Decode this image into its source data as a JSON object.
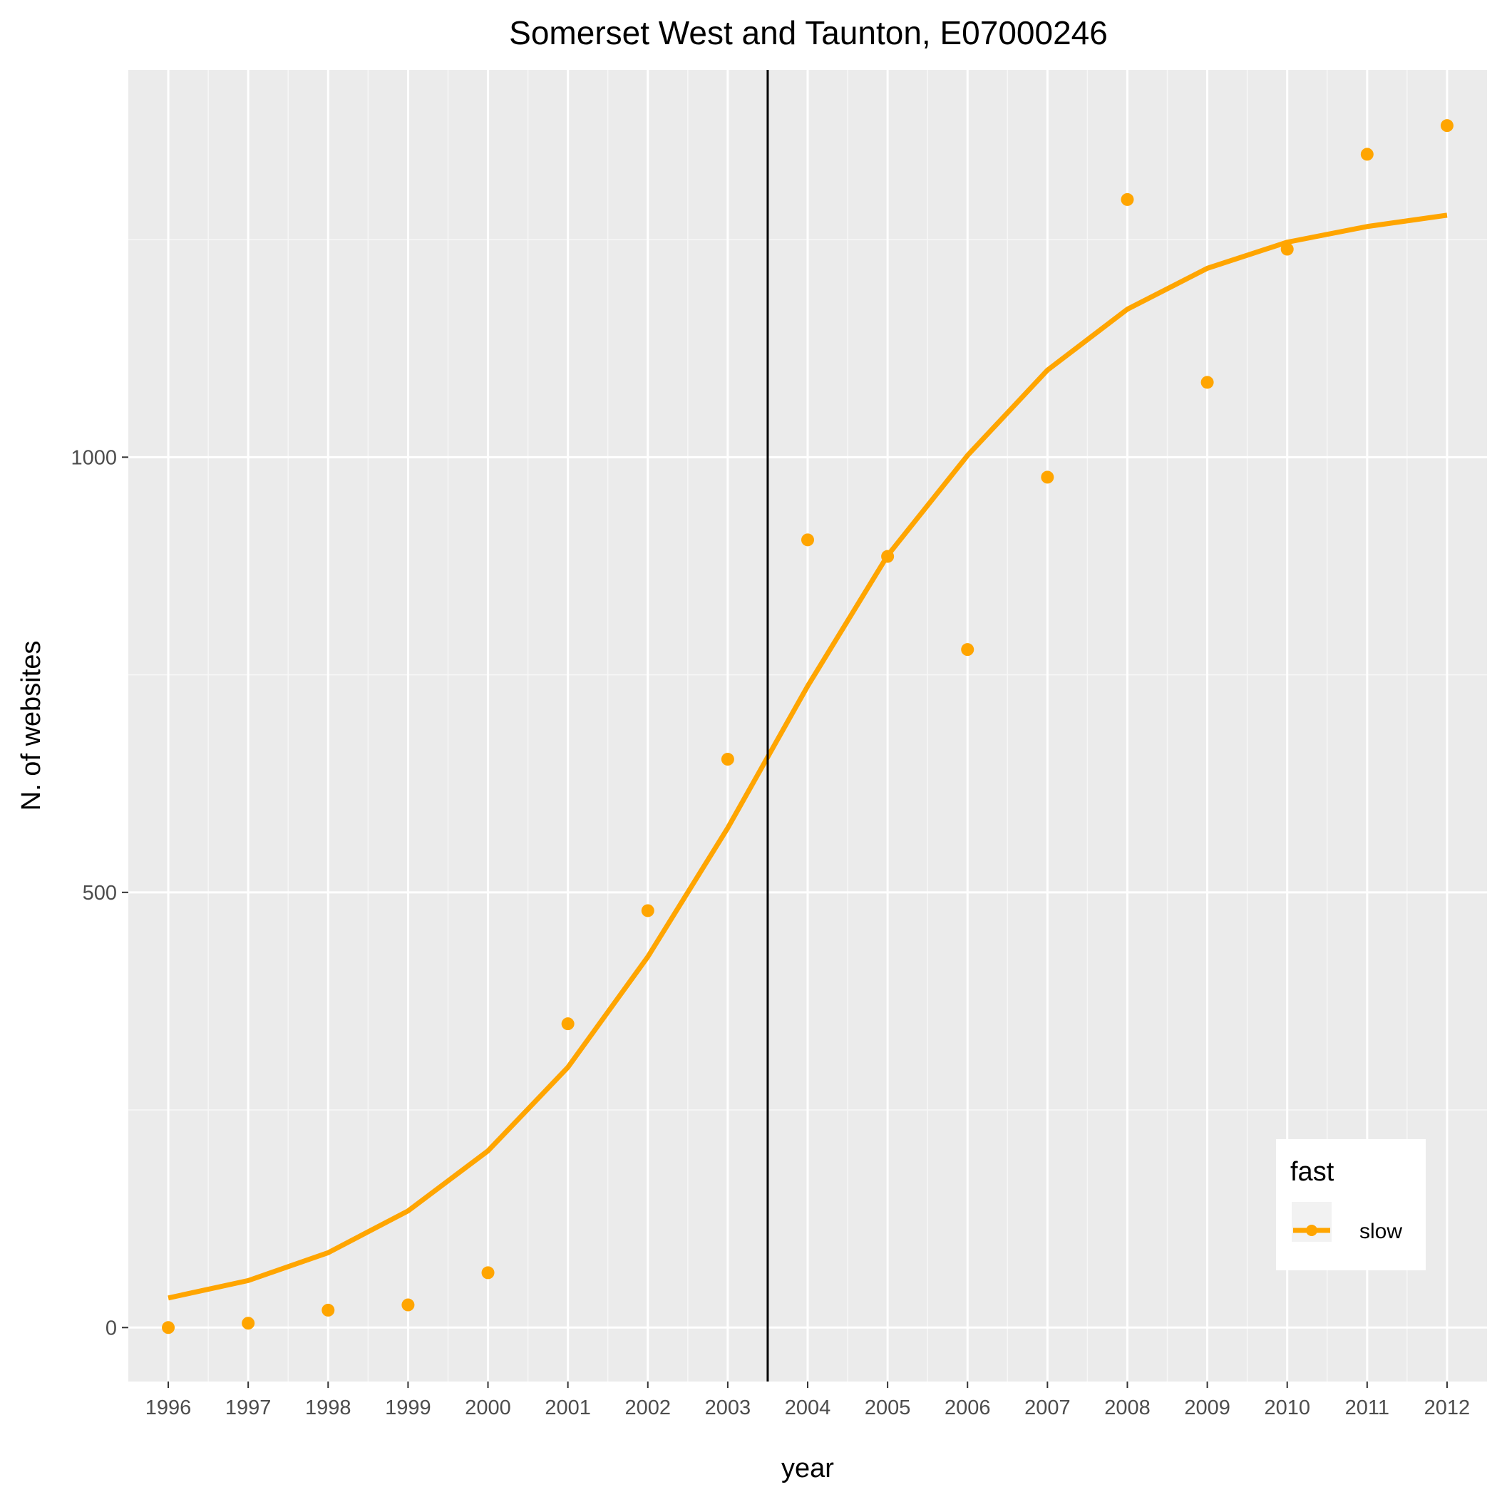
{
  "chart_data": {
    "type": "line",
    "title": "Somerset West and Taunton, E07000246",
    "xlabel": "year",
    "ylabel": "N. of websites",
    "x": [
      1996,
      1997,
      1998,
      1999,
      2000,
      2001,
      2002,
      2003,
      2004,
      2005,
      2006,
      2007,
      2008,
      2009,
      2010,
      2011,
      2012
    ],
    "x_tick_labels": [
      "1996",
      "1997",
      "1998",
      "1999",
      "2000",
      "2001",
      "2002",
      "2003",
      "2004",
      "2005",
      "2006",
      "2007",
      "2008",
      "2009",
      "2010",
      "2011",
      "2012"
    ],
    "y_ticks": [
      0,
      500,
      1000
    ],
    "y_tick_labels": [
      "0",
      "500",
      "1000"
    ],
    "xlim": [
      1995.5,
      2012.5
    ],
    "ylim": [
      -62,
      1445
    ],
    "grid": true,
    "series": [
      {
        "name": "slow",
        "points": [
          0,
          5,
          20,
          26,
          63,
          349,
          479,
          653,
          905,
          886,
          779,
          977,
          1296,
          1086,
          1239,
          1348,
          1381
        ],
        "smooth": [
          34,
          54,
          86,
          134,
          203,
          299,
          426,
          574,
          737,
          887,
          1002,
          1100,
          1170,
          1217,
          1247,
          1265,
          1278
        ]
      }
    ],
    "vline_x": 2003.5,
    "legend": {
      "title": "fast",
      "position": "bottom-right"
    },
    "colors": {
      "series": "#FFA500",
      "panel": "#EBEBEB",
      "grid": "#FFFFFF",
      "vline": "#000000"
    }
  }
}
